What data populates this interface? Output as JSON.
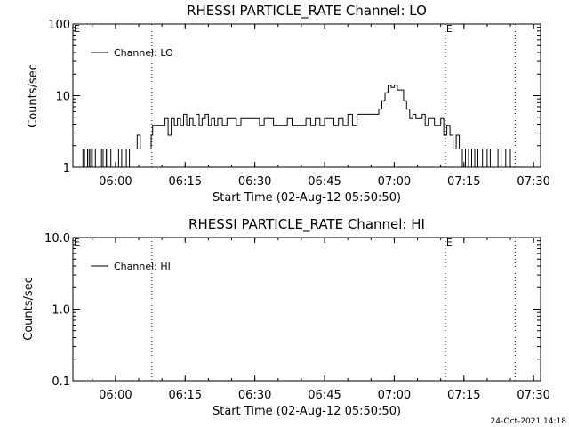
{
  "timestamp": "24-Oct-2021 14:18",
  "chart_data": [
    {
      "type": "line",
      "title": "RHESSI PARTICLE_RATE Channel: LO",
      "xlabel": "Start Time (02-Aug-12 05:50:50)",
      "ylabel": "Counts/sec",
      "yscale": "log",
      "ylim": [
        1,
        100
      ],
      "xlim": [
        "05:50:50",
        "07:31:30"
      ],
      "x_ticks": [
        "06:00",
        "06:15",
        "06:30",
        "06:45",
        "07:00",
        "07:15",
        "07:30"
      ],
      "y_ticks": [
        "1",
        "10",
        "100"
      ],
      "legend": "top-left",
      "markers": [
        {
          "label": "E",
          "time": "05:50:50"
        },
        {
          "label": "E",
          "time": "07:11:00"
        }
      ],
      "dotted_lines": [
        "06:07:50",
        "07:11:00",
        "07:26:00"
      ],
      "series": [
        {
          "name": "Channel: LO",
          "color": "#000000",
          "x": [
            "05:52:40",
            "05:53:00",
            "05:53:20",
            "05:53:40",
            "05:54:00",
            "05:54:20",
            "05:54:40",
            "05:55:00",
            "05:55:20",
            "05:55:40",
            "05:56:00",
            "05:56:20",
            "05:56:40",
            "05:57:00",
            "05:57:20",
            "05:57:40",
            "05:58:00",
            "05:58:20",
            "05:58:40",
            "05:59:00",
            "05:59:40",
            "06:00:20",
            "06:00:40",
            "06:01:20",
            "06:02:20",
            "06:03:00",
            "06:03:20",
            "06:04:40",
            "06:05:20",
            "06:06:20",
            "06:07:00",
            "06:07:40",
            "06:08:00",
            "06:08:20",
            "06:09:00",
            "06:10:00",
            "06:10:40",
            "06:11:20",
            "06:12:00",
            "06:12:40",
            "06:13:20",
            "06:14:00",
            "06:14:40",
            "06:15:20",
            "06:16:00",
            "06:16:40",
            "06:17:20",
            "06:18:00",
            "06:18:40",
            "06:19:20",
            "06:20:00",
            "06:20:40",
            "06:21:20",
            "06:22:00",
            "06:23:00",
            "06:24:00",
            "06:25:00",
            "06:26:00",
            "06:27:00",
            "06:28:00",
            "06:29:00",
            "06:30:00",
            "06:31:00",
            "06:32:00",
            "06:33:00",
            "06:34:00",
            "06:35:00",
            "06:36:00",
            "06:37:00",
            "06:38:00",
            "06:39:00",
            "06:40:00",
            "06:41:00",
            "06:42:00",
            "06:43:00",
            "06:44:00",
            "06:45:00",
            "06:46:00",
            "06:47:00",
            "06:48:00",
            "06:49:00",
            "06:50:00",
            "06:51:00",
            "06:52:00",
            "06:53:00",
            "06:54:00",
            "06:55:00",
            "06:56:00",
            "06:56:40",
            "06:57:20",
            "06:58:00",
            "06:58:40",
            "06:59:20",
            "07:00:00",
            "07:00:40",
            "07:01:20",
            "07:02:00",
            "07:02:40",
            "07:03:20",
            "07:04:00",
            "07:04:40",
            "07:05:20",
            "07:06:00",
            "07:06:40",
            "07:07:20",
            "07:08:00",
            "07:08:40",
            "07:09:20",
            "07:10:00",
            "07:10:40",
            "07:11:20",
            "07:12:00",
            "07:12:40",
            "07:13:20",
            "07:14:00",
            "07:14:40",
            "07:15:20",
            "07:16:00",
            "07:16:40",
            "07:17:20",
            "07:18:00",
            "07:19:00",
            "07:20:00",
            "07:20:40",
            "07:21:20",
            "07:22:20",
            "07:23:00",
            "07:24:00",
            "07:25:00"
          ],
          "values": [
            1,
            1.8,
            1,
            1,
            1.8,
            1,
            1.8,
            1,
            1,
            1.8,
            1.8,
            1.8,
            1,
            1.8,
            1,
            1,
            1.8,
            1,
            1,
            1.8,
            1.8,
            1.8,
            1,
            1.8,
            1,
            1.8,
            1.8,
            2.8,
            1.8,
            1.8,
            1.8,
            2.8,
            3.8,
            3.8,
            3.8,
            3.8,
            4.8,
            2.8,
            4.8,
            3.8,
            4.8,
            3.8,
            5.5,
            3.8,
            4.8,
            3.8,
            5.5,
            3.8,
            4.8,
            5.5,
            3.8,
            4.8,
            3.8,
            4.8,
            3.8,
            4.8,
            4.8,
            3.8,
            4.8,
            4.8,
            4.8,
            4.8,
            3.8,
            4.8,
            4.8,
            3.8,
            3.8,
            3.8,
            4.8,
            3.8,
            3.8,
            3.8,
            4.8,
            3.8,
            4.8,
            3.8,
            4.8,
            4.8,
            3.8,
            4.8,
            3.8,
            5.5,
            3.8,
            5.5,
            5.5,
            5.5,
            5.5,
            5.5,
            6.5,
            8.5,
            11,
            14,
            13,
            14,
            12,
            12,
            8.5,
            6.5,
            4.8,
            5.5,
            4.8,
            4.8,
            5.5,
            3.8,
            4.8,
            4.8,
            3.8,
            3.8,
            4.8,
            2.8,
            3.8,
            2.8,
            1.8,
            2.8,
            1.8,
            1,
            1.8,
            1,
            1.8,
            1,
            1.8,
            1,
            1.8,
            1,
            1,
            1.8,
            1,
            1.8,
            1
          ]
        }
      ]
    },
    {
      "type": "line",
      "title": "RHESSI PARTICLE_RATE Channel: HI",
      "xlabel": "Start Time (02-Aug-12 05:50:50)",
      "ylabel": "Counts/sec",
      "yscale": "log",
      "ylim": [
        0.1,
        10
      ],
      "xlim": [
        "05:50:50",
        "07:31:30"
      ],
      "x_ticks": [
        "06:00",
        "06:15",
        "06:30",
        "06:45",
        "07:00",
        "07:15",
        "07:30"
      ],
      "y_ticks": [
        "0.1",
        "1.0",
        "10.0"
      ],
      "legend": "top-left",
      "markers": [
        {
          "label": "E",
          "time": "05:50:50"
        },
        {
          "label": "E",
          "time": "07:11:00"
        }
      ],
      "dotted_lines": [
        "06:07:50",
        "07:11:00",
        "07:26:00"
      ],
      "series": [
        {
          "name": "Channel: HI",
          "color": "#000000",
          "x": [],
          "values": []
        }
      ]
    }
  ]
}
